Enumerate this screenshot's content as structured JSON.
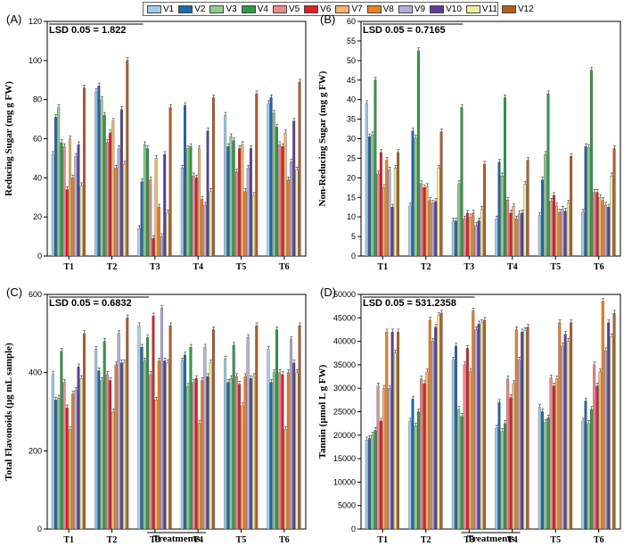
{
  "legend": [
    "V1",
    "V2",
    "V3",
    "V4",
    "V5",
    "V6",
    "V7",
    "V8",
    "V9",
    "V10",
    "V11",
    "V12"
  ],
  "colors": [
    "#9fcfe8",
    "#1f66ab",
    "#8fcc8f",
    "#2f9a44",
    "#e98a8e",
    "#dd1f26",
    "#f4b46b",
    "#f07f23",
    "#b7aed6",
    "#5e3f98",
    "#ecf0a2",
    "#b25d27"
  ],
  "x_common_label": "Treatments",
  "chart_data": [
    {
      "type": "bar",
      "panel": "(A)",
      "lsd": "LSD 0.05 = 1.822",
      "ylabel": "Reducing Sugar (mg g FW)",
      "ylim": [
        0,
        120
      ],
      "yticks": [
        "0",
        "20",
        "40",
        "60",
        "80",
        "100",
        "120"
      ],
      "categories": [
        "T1",
        "T2",
        "T3",
        "T4",
        "T5",
        "T6"
      ],
      "series": [
        {
          "name": "V1",
          "values": [
            52,
            84,
            14,
            45,
            72,
            78
          ]
        },
        {
          "name": "V2",
          "values": [
            71,
            87,
            38,
            77,
            56,
            81
          ]
        },
        {
          "name": "V3",
          "values": [
            76,
            80,
            57,
            55,
            61,
            73
          ]
        },
        {
          "name": "V4",
          "values": [
            58,
            72,
            55,
            56,
            59,
            66
          ]
        },
        {
          "name": "V5",
          "values": [
            56,
            58,
            39,
            41,
            43,
            57
          ]
        },
        {
          "name": "V6",
          "values": [
            34,
            63,
            9,
            40,
            55,
            56
          ]
        },
        {
          "name": "V7",
          "values": [
            60,
            69,
            50,
            55,
            57,
            63
          ]
        },
        {
          "name": "V8",
          "values": [
            40,
            45,
            25,
            29,
            33,
            39
          ]
        },
        {
          "name": "V9",
          "values": [
            51,
            55,
            10,
            26,
            45,
            48
          ]
        },
        {
          "name": "V10",
          "values": [
            57,
            75,
            52,
            64,
            55,
            69
          ]
        },
        {
          "name": "V11",
          "values": [
            36,
            47,
            22,
            33,
            31,
            44
          ]
        },
        {
          "name": "V12",
          "values": [
            86,
            100,
            76,
            81,
            83,
            89
          ]
        }
      ]
    },
    {
      "type": "bar",
      "panel": "(B)",
      "lsd": "LSD 0.05 = 0.7165",
      "ylabel": "Non-Reducing Sugar (mg g FW)",
      "ylim": [
        0,
        60
      ],
      "yticks": [
        "0",
        "5",
        "10",
        "15",
        "20",
        "25",
        "30",
        "35",
        "40",
        "45",
        "50",
        "55",
        "60"
      ],
      "categories": [
        "T1",
        "T2",
        "T3",
        "T4",
        "T5",
        "T6"
      ],
      "series": [
        {
          "name": "V1",
          "values": [
            39,
            12.8,
            9,
            9.5,
            10.4,
            11.2
          ]
        },
        {
          "name": "V2",
          "values": [
            30.5,
            32,
            9,
            24,
            19.5,
            28
          ]
        },
        {
          "name": "V3",
          "values": [
            31,
            30.2,
            18.5,
            20.5,
            26,
            27.8
          ]
        },
        {
          "name": "V4",
          "values": [
            45,
            52.5,
            38,
            40.5,
            41.5,
            47.5
          ]
        },
        {
          "name": "V5",
          "values": [
            21,
            18.5,
            9.5,
            14.3,
            14,
            16.3
          ]
        },
        {
          "name": "V6",
          "values": [
            26.5,
            17.5,
            11,
            11,
            15.5,
            16.3
          ]
        },
        {
          "name": "V7",
          "values": [
            17.5,
            17.8,
            10,
            12.7,
            12.8,
            15
          ]
        },
        {
          "name": "V8",
          "values": [
            24.5,
            14.2,
            11,
            9.5,
            11.2,
            14.2
          ]
        },
        {
          "name": "V9",
          "values": [
            22,
            13.5,
            7.8,
            10.8,
            12,
            13
          ]
        },
        {
          "name": "V10",
          "values": [
            12.5,
            14,
            9,
            11,
            11.5,
            12.5
          ]
        },
        {
          "name": "V11",
          "values": [
            22.5,
            22.5,
            12,
            18.3,
            13.5,
            20.5
          ]
        },
        {
          "name": "V12",
          "values": [
            26.5,
            31.8,
            23.5,
            24.5,
            25.5,
            27.5
          ]
        }
      ]
    },
    {
      "type": "bar",
      "panel": "(C)",
      "lsd": "LSD 0.05 = 0.6832",
      "ylabel": "Total Flavonoids (µg mL sample)",
      "ylim": [
        0,
        600
      ],
      "yticks": [
        "0",
        "200",
        "400",
        "600"
      ],
      "categories": [
        "T1",
        "T2",
        "T3",
        "T4",
        "T5",
        "T6"
      ],
      "series": [
        {
          "name": "V1",
          "values": [
            395,
            460,
            520,
            430,
            435,
            460
          ]
        },
        {
          "name": "V2",
          "values": [
            330,
            405,
            465,
            445,
            375,
            375
          ]
        },
        {
          "name": "V3",
          "values": [
            335,
            380,
            430,
            365,
            385,
            400
          ]
        },
        {
          "name": "V4",
          "values": [
            455,
            480,
            490,
            465,
            470,
            510
          ]
        },
        {
          "name": "V5",
          "values": [
            375,
            395,
            395,
            375,
            390,
            400
          ]
        },
        {
          "name": "V6",
          "values": [
            310,
            380,
            545,
            385,
            370,
            395
          ]
        },
        {
          "name": "V7",
          "values": [
            255,
            300,
            330,
            270,
            315,
            255
          ]
        },
        {
          "name": "V8",
          "values": [
            345,
            420,
            430,
            380,
            390,
            400
          ]
        },
        {
          "name": "V9",
          "values": [
            355,
            500,
            565,
            465,
            490,
            485
          ]
        },
        {
          "name": "V10",
          "values": [
            415,
            425,
            430,
            390,
            385,
            425
          ]
        },
        {
          "name": "V11",
          "values": [
            385,
            425,
            425,
            425,
            390,
            400
          ]
        },
        {
          "name": "V12",
          "values": [
            500,
            540,
            520,
            510,
            520,
            520
          ]
        }
      ]
    },
    {
      "type": "bar",
      "panel": "(D)",
      "lsd": "LSD 0.05 = 531.2358",
      "ylabel": "Tannin (µmol L g FW)",
      "ylim": [
        0,
        50000
      ],
      "yticks": [
        "0",
        "5000",
        "10000",
        "15000",
        "20000",
        "25000",
        "30000",
        "35000",
        "40000",
        "45000",
        "50000"
      ],
      "categories": [
        "T1",
        "T2",
        "T3",
        "T4",
        "T5",
        "T6"
      ],
      "series": [
        {
          "name": "V1",
          "values": [
            19000,
            23000,
            36000,
            21500,
            26000,
            23000
          ]
        },
        {
          "name": "V2",
          "values": [
            19300,
            27700,
            39000,
            27000,
            25000,
            27300
          ]
        },
        {
          "name": "V3",
          "values": [
            20000,
            22000,
            25500,
            20800,
            22700,
            22500
          ]
        },
        {
          "name": "V4",
          "values": [
            21000,
            25000,
            24000,
            22500,
            23700,
            25500
          ]
        },
        {
          "name": "V5",
          "values": [
            30500,
            32000,
            35000,
            32000,
            32200,
            35000
          ]
        },
        {
          "name": "V6",
          "values": [
            23000,
            31000,
            38500,
            28000,
            30500,
            30500
          ]
        },
        {
          "name": "V7",
          "values": [
            30000,
            33500,
            33500,
            31000,
            32000,
            33500
          ]
        },
        {
          "name": "V8",
          "values": [
            42000,
            44500,
            46500,
            42500,
            44000,
            48500
          ]
        },
        {
          "name": "V9",
          "values": [
            30000,
            40000,
            42500,
            36000,
            39000,
            38000
          ]
        },
        {
          "name": "V10",
          "values": [
            42000,
            43000,
            43700,
            42000,
            41500,
            44000
          ]
        },
        {
          "name": "V11",
          "values": [
            37500,
            45500,
            44000,
            42300,
            40000,
            41000
          ]
        },
        {
          "name": "V12",
          "values": [
            42000,
            46000,
            44500,
            43000,
            44000,
            46000
          ]
        }
      ]
    }
  ]
}
